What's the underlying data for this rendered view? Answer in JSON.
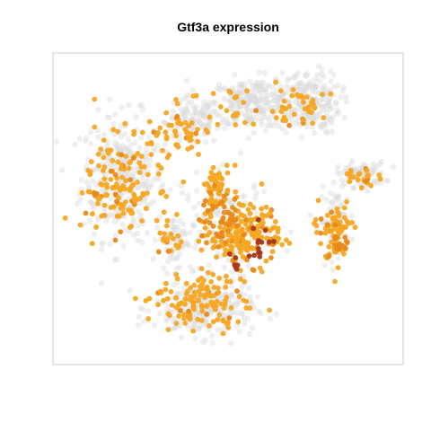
{
  "chart_data": {
    "type": "scatter",
    "title": "Gtf3a expression",
    "xlabel": "",
    "ylabel": "",
    "xlim": [
      0,
      100
    ],
    "ylim": [
      0,
      100
    ],
    "grid": false,
    "legend": "none",
    "colors": {
      "background_cells": "#dcdcdc",
      "expressing_low": "#f5a623",
      "expressing_mid": "#e8891a",
      "expressing_high": "#a3361a",
      "frame": "#cccccc"
    },
    "background_clusters": [
      {
        "cx": 20,
        "cy": 60,
        "rx": 12,
        "ry": 20,
        "n": 320
      },
      {
        "cx": 40,
        "cy": 78,
        "rx": 8,
        "ry": 8,
        "n": 110
      },
      {
        "cx": 57,
        "cy": 84,
        "rx": 12,
        "ry": 8,
        "n": 240
      },
      {
        "cx": 73,
        "cy": 84,
        "rx": 9,
        "ry": 10,
        "n": 220
      },
      {
        "cx": 88,
        "cy": 61,
        "rx": 7,
        "ry": 4,
        "n": 90
      },
      {
        "cx": 81,
        "cy": 46,
        "rx": 5,
        "ry": 10,
        "n": 80
      },
      {
        "cx": 50,
        "cy": 45,
        "rx": 13,
        "ry": 16,
        "n": 120
      },
      {
        "cx": 43,
        "cy": 18,
        "rx": 14,
        "ry": 9,
        "n": 260
      },
      {
        "cx": 35,
        "cy": 40,
        "rx": 5,
        "ry": 8,
        "n": 60
      }
    ],
    "expression_clusters": [
      {
        "cx": 20,
        "cy": 58,
        "rx": 11,
        "ry": 19,
        "n": 150,
        "level": 0
      },
      {
        "cx": 37,
        "cy": 75,
        "rx": 8,
        "ry": 8,
        "n": 45,
        "level": 0
      },
      {
        "cx": 52,
        "cy": 82,
        "rx": 9,
        "ry": 8,
        "n": 22,
        "level": 0
      },
      {
        "cx": 71,
        "cy": 82,
        "rx": 7,
        "ry": 8,
        "n": 38,
        "level": 0
      },
      {
        "cx": 47,
        "cy": 57,
        "rx": 4,
        "ry": 8,
        "n": 55,
        "level": 0
      },
      {
        "cx": 54,
        "cy": 42,
        "rx": 11,
        "ry": 11,
        "n": 190,
        "level": 0
      },
      {
        "cx": 48,
        "cy": 46,
        "rx": 6,
        "ry": 10,
        "n": 40,
        "level": 1
      },
      {
        "cx": 81,
        "cy": 43,
        "rx": 5,
        "ry": 11,
        "n": 70,
        "level": 0
      },
      {
        "cx": 82,
        "cy": 39,
        "rx": 3,
        "ry": 5,
        "n": 14,
        "level": 1
      },
      {
        "cx": 88,
        "cy": 60,
        "rx": 6,
        "ry": 3,
        "n": 20,
        "level": 0
      },
      {
        "cx": 42,
        "cy": 20,
        "rx": 12,
        "ry": 9,
        "n": 130,
        "level": 0
      },
      {
        "cx": 33,
        "cy": 40,
        "rx": 4,
        "ry": 7,
        "n": 20,
        "level": 0
      },
      {
        "cx": 60,
        "cy": 40,
        "rx": 5,
        "ry": 6,
        "n": 14,
        "level": 2
      },
      {
        "cx": 51,
        "cy": 33,
        "rx": 4,
        "ry": 4,
        "n": 6,
        "level": 2
      }
    ]
  }
}
